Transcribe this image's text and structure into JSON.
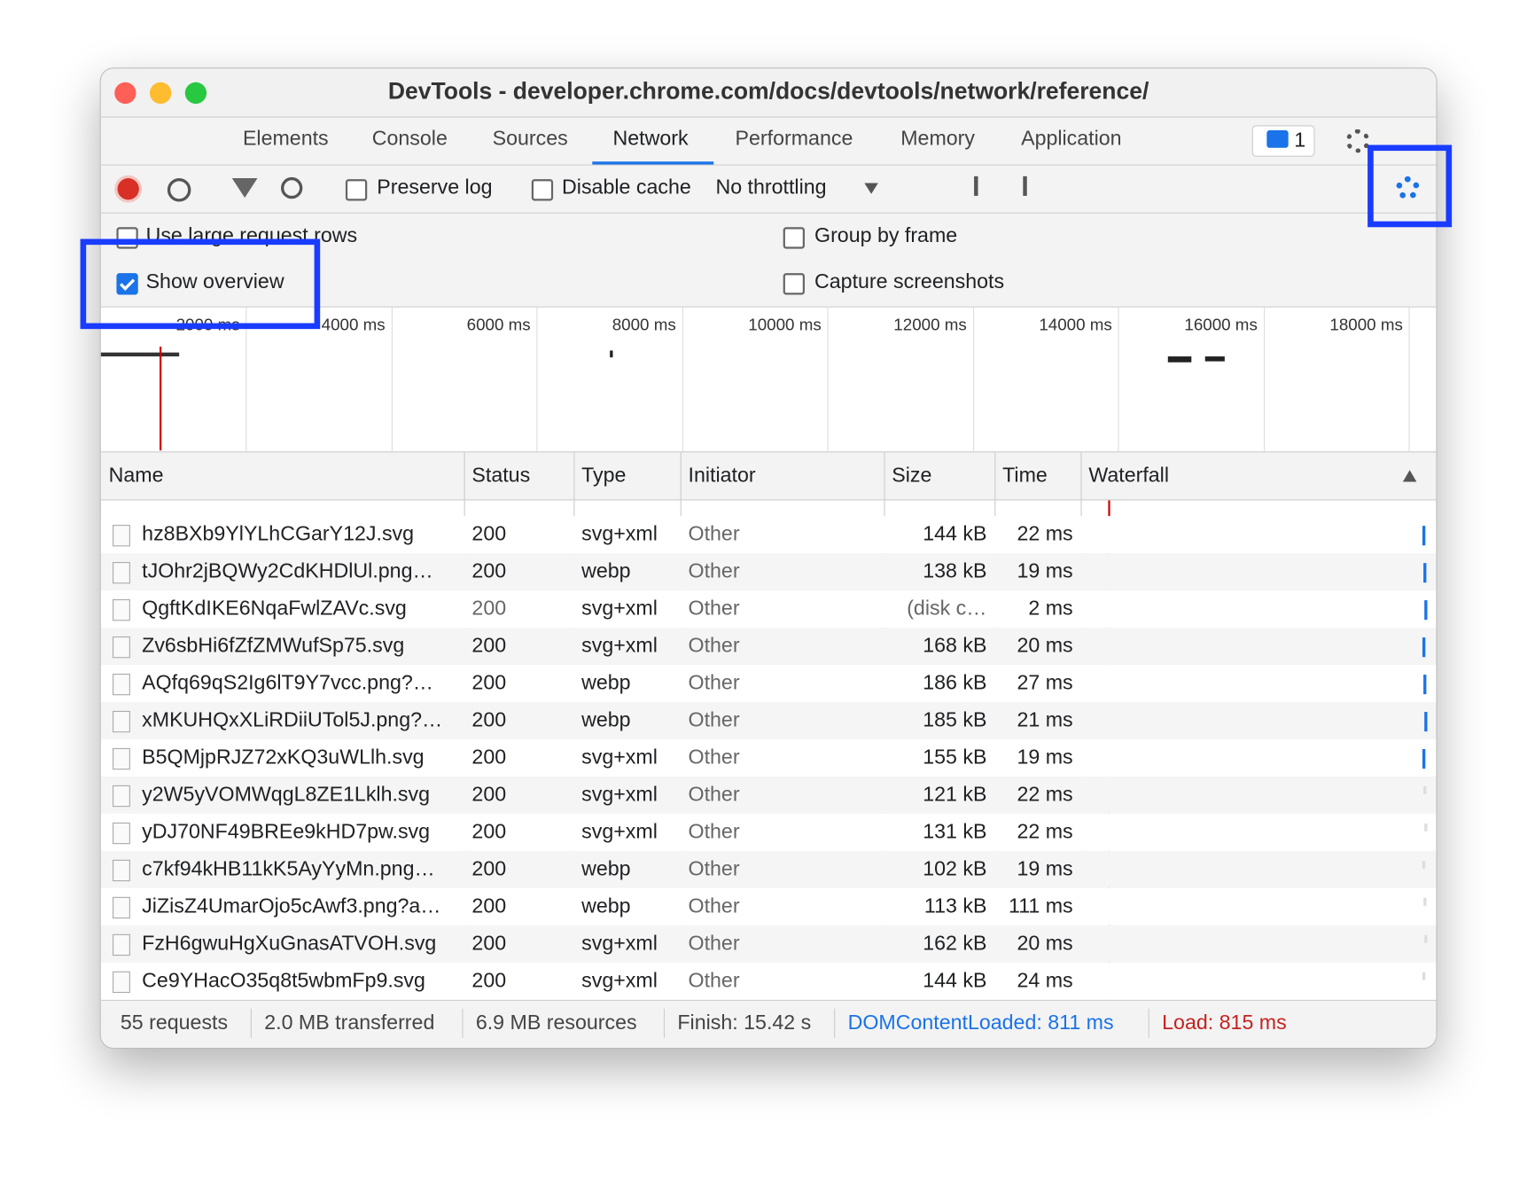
{
  "window": {
    "title": "DevTools - developer.chrome.com/docs/devtools/network/reference/"
  },
  "tabs": {
    "items": [
      "Elements",
      "Console",
      "Sources",
      "Network",
      "Performance",
      "Memory",
      "Application"
    ],
    "active": "Network",
    "issues_count": "1"
  },
  "toolbar": {
    "preserve_log": "Preserve log",
    "disable_cache": "Disable cache",
    "throttling": "No throttling"
  },
  "settings": {
    "large_rows": "Use large request rows",
    "show_overview": "Show overview",
    "group_by_frame": "Group by frame",
    "capture_screenshots": "Capture screenshots"
  },
  "overview": {
    "ticks": [
      "2000 ms",
      "4000 ms",
      "6000 ms",
      "8000 ms",
      "10000 ms",
      "12000 ms",
      "14000 ms",
      "16000 ms",
      "18000 ms"
    ]
  },
  "table": {
    "columns": [
      "Name",
      "Status",
      "Type",
      "Initiator",
      "Size",
      "Time",
      "Waterfall"
    ],
    "rows": [
      [
        "hz8BXb9YlYLhCGarY12J.svg",
        "200",
        "svg+xml",
        "Other",
        "144 kB",
        "22 ms"
      ],
      [
        "tJOhr2jBQWy2CdKHDlUl.png…",
        "200",
        "webp",
        "Other",
        "138 kB",
        "19 ms"
      ],
      [
        "QgftKdIKE6NqaFwlZAVc.svg",
        "200",
        "svg+xml",
        "Other",
        "(disk c…",
        "2 ms"
      ],
      [
        "Zv6sbHi6fZfZMWufSp75.svg",
        "200",
        "svg+xml",
        "Other",
        "168 kB",
        "20 ms"
      ],
      [
        "AQfq69qS2Ig6lT9Y7vcc.png?…",
        "200",
        "webp",
        "Other",
        "186 kB",
        "27 ms"
      ],
      [
        "xMKUHQxXLiRDiiUTol5J.png?…",
        "200",
        "webp",
        "Other",
        "185 kB",
        "21 ms"
      ],
      [
        "B5QMjpRJZ72xKQ3uWLlh.svg",
        "200",
        "svg+xml",
        "Other",
        "155 kB",
        "19 ms"
      ],
      [
        "y2W5yVOMWqgL8ZE1Lklh.svg",
        "200",
        "svg+xml",
        "Other",
        "121 kB",
        "22 ms"
      ],
      [
        "yDJ70NF49BREe9kHD7pw.svg",
        "200",
        "svg+xml",
        "Other",
        "131 kB",
        "22 ms"
      ],
      [
        "c7kf94kHB11kK5AyYyMn.png…",
        "200",
        "webp",
        "Other",
        "102 kB",
        "19 ms"
      ],
      [
        "JiZisZ4UmarOjo5cAwf3.png?a…",
        "200",
        "webp",
        "Other",
        "113 kB",
        "111 ms"
      ],
      [
        "FzH6gwuHgXuGnasATVOH.svg",
        "200",
        "svg+xml",
        "Other",
        "162 kB",
        "20 ms"
      ],
      [
        "Ce9YHacO35q8t5wbmFp9.svg",
        "200",
        "svg+xml",
        "Other",
        "144 kB",
        "24 ms"
      ]
    ]
  },
  "status_bar": {
    "requests": "55 requests",
    "transferred": "2.0 MB transferred",
    "resources": "6.9 MB resources",
    "finish": "Finish: 15.42 s",
    "dom_content_loaded": "DOMContentLoaded: 811 ms",
    "load": "Load: 815 ms"
  }
}
